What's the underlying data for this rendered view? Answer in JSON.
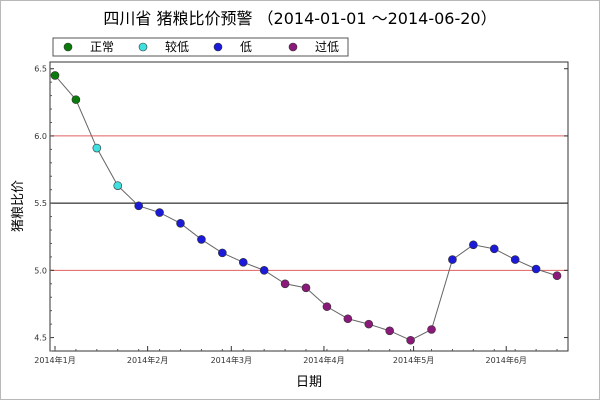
{
  "chart_data": {
    "type": "scatter",
    "title": "四川省 猪粮比价预警 （2014-01-01 ～2014-06-20）",
    "xlabel": "日期",
    "ylabel": "猪粮比价",
    "ylim": [
      4.4,
      6.55
    ],
    "xlim": [
      "2014-01-01",
      "2014-06-20"
    ],
    "x_ticks": [
      {
        "date": "2014-01-01",
        "label": "2014年1月"
      },
      {
        "date": "2014-02-01",
        "label": "2014年2月"
      },
      {
        "date": "2014-03-01",
        "label": "2014年3月"
      },
      {
        "date": "2014-04-01",
        "label": "2014年4月"
      },
      {
        "date": "2014-05-01",
        "label": "2014年5月"
      },
      {
        "date": "2014-06-01",
        "label": "2014年6月"
      }
    ],
    "y_ticks": [
      "4.5",
      "5.0",
      "5.5",
      "6.0",
      "6.5"
    ],
    "threshold_lines": [
      {
        "value": 6.0,
        "color": "#e06060"
      },
      {
        "value": 5.5,
        "color": "#000000"
      },
      {
        "value": 5.0,
        "color": "#e06060"
      }
    ],
    "grid": false,
    "legend_position": "top",
    "legend": [
      {
        "key": "normal",
        "label": "正常",
        "color": "#0a7a0a"
      },
      {
        "key": "relatively_low",
        "label": "较低",
        "color": "#40e0e0"
      },
      {
        "key": "low",
        "label": "低",
        "color": "#1a1ad8"
      },
      {
        "key": "too_low",
        "label": "过低",
        "color": "#8a1a7a"
      }
    ],
    "points": [
      {
        "date": "2014-01-01",
        "value": 6.45,
        "level": "normal"
      },
      {
        "date": "2014-01-08",
        "value": 6.27,
        "level": "normal"
      },
      {
        "date": "2014-01-15",
        "value": 5.91,
        "level": "relatively_low"
      },
      {
        "date": "2014-01-22",
        "value": 5.63,
        "level": "relatively_low"
      },
      {
        "date": "2014-01-29",
        "value": 5.48,
        "level": "low"
      },
      {
        "date": "2014-02-05",
        "value": 5.43,
        "level": "low"
      },
      {
        "date": "2014-02-12",
        "value": 5.35,
        "level": "low"
      },
      {
        "date": "2014-02-19",
        "value": 5.23,
        "level": "low"
      },
      {
        "date": "2014-02-26",
        "value": 5.13,
        "level": "low"
      },
      {
        "date": "2014-03-05",
        "value": 5.06,
        "level": "low"
      },
      {
        "date": "2014-03-12",
        "value": 5.0,
        "level": "low"
      },
      {
        "date": "2014-03-19",
        "value": 4.9,
        "level": "too_low"
      },
      {
        "date": "2014-03-26",
        "value": 4.87,
        "level": "too_low"
      },
      {
        "date": "2014-04-02",
        "value": 4.73,
        "level": "too_low"
      },
      {
        "date": "2014-04-09",
        "value": 4.64,
        "level": "too_low"
      },
      {
        "date": "2014-04-16",
        "value": 4.6,
        "level": "too_low"
      },
      {
        "date": "2014-04-23",
        "value": 4.55,
        "level": "too_low"
      },
      {
        "date": "2014-04-30",
        "value": 4.48,
        "level": "too_low"
      },
      {
        "date": "2014-05-07",
        "value": 4.56,
        "level": "too_low"
      },
      {
        "date": "2014-05-14",
        "value": 5.08,
        "level": "low"
      },
      {
        "date": "2014-05-21",
        "value": 5.19,
        "level": "low"
      },
      {
        "date": "2014-05-28",
        "value": 5.16,
        "level": "low"
      },
      {
        "date": "2014-06-04",
        "value": 5.08,
        "level": "low"
      },
      {
        "date": "2014-06-11",
        "value": 5.01,
        "level": "low"
      },
      {
        "date": "2014-06-18",
        "value": 4.96,
        "level": "too_low"
      }
    ]
  }
}
